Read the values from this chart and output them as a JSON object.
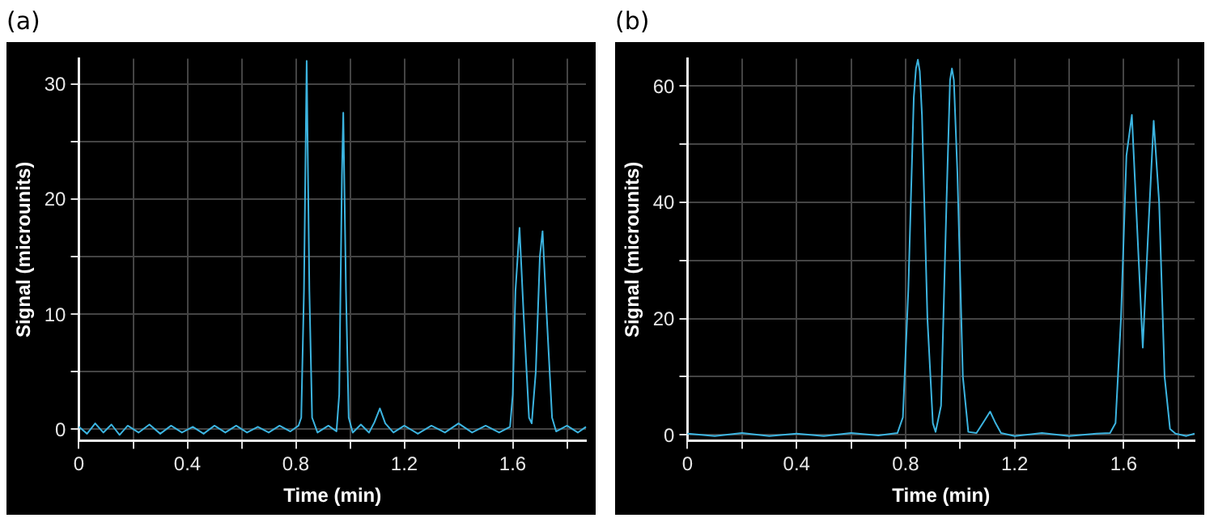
{
  "chart_data": [
    {
      "type": "line",
      "title": "(a)",
      "xlabel": "Time (min)",
      "ylabel": "Signal (microunits)",
      "color": "#3cb4e0",
      "marker": "none",
      "grid": true,
      "xlim": [
        0,
        1.87
      ],
      "ylim": [
        -1,
        32.2
      ],
      "xticks": [
        0,
        {
          "value": 0.2,
          "label": null
        },
        0.4,
        {
          "value": 0.6,
          "label": null
        },
        0.8,
        {
          "value": 1.0,
          "label": null
        },
        1.2,
        {
          "value": 1.4,
          "label": null
        },
        1.6,
        {
          "value": 1.8,
          "label": null
        }
      ],
      "yticks": [
        0,
        {
          "value": 5,
          "label": null
        },
        10,
        {
          "value": 15,
          "label": null
        },
        20,
        {
          "value": 25,
          "label": null
        },
        30
      ],
      "x": [
        0,
        0.03,
        0.06,
        0.09,
        0.12,
        0.15,
        0.18,
        0.22,
        0.26,
        0.3,
        0.34,
        0.38,
        0.42,
        0.46,
        0.5,
        0.54,
        0.58,
        0.62,
        0.66,
        0.7,
        0.74,
        0.78,
        0.81,
        0.82,
        0.83,
        0.84,
        0.85,
        0.86,
        0.88,
        0.92,
        0.95,
        0.96,
        0.97,
        0.975,
        0.985,
        0.995,
        1.01,
        1.04,
        1.07,
        1.09,
        1.11,
        1.13,
        1.16,
        1.2,
        1.25,
        1.3,
        1.35,
        1.4,
        1.45,
        1.5,
        1.55,
        1.59,
        1.6,
        1.61,
        1.625,
        1.64,
        1.66,
        1.67,
        1.685,
        1.7,
        1.71,
        1.725,
        1.745,
        1.76,
        1.8,
        1.84,
        1.87
      ],
      "values": [
        0.2,
        -0.4,
        0.5,
        -0.3,
        0.4,
        -0.5,
        0.3,
        -0.3,
        0.4,
        -0.4,
        0.3,
        -0.3,
        0.2,
        -0.4,
        0.3,
        -0.3,
        0.3,
        -0.3,
        0.2,
        -0.3,
        0.3,
        -0.2,
        0.3,
        1,
        12,
        32,
        12,
        1,
        -0.3,
        0.3,
        -0.2,
        3,
        22,
        27.5,
        12,
        1,
        -0.3,
        0.4,
        -0.3,
        0.6,
        1.8,
        0.5,
        -0.3,
        0.3,
        -0.4,
        0.3,
        -0.3,
        0.5,
        -0.3,
        0.3,
        -0.3,
        0.2,
        3,
        12,
        17.5,
        10,
        1,
        0.5,
        5,
        15,
        17.2,
        10,
        1,
        -0.2,
        0.3,
        -0.3,
        0.2
      ]
    },
    {
      "type": "line",
      "title": "(b)",
      "xlabel": "Time (min)",
      "ylabel": "Signal (microunits)",
      "color": "#3cb4e0",
      "marker": "none",
      "grid": true,
      "xlim": [
        0,
        1.86
      ],
      "ylim": [
        -1,
        64.7
      ],
      "xticks": [
        0,
        {
          "value": 0.2,
          "label": null
        },
        0.4,
        {
          "value": 0.6,
          "label": null
        },
        0.8,
        {
          "value": 1.0,
          "label": null
        },
        1.2,
        {
          "value": 1.4,
          "label": null
        },
        1.6,
        {
          "value": 1.8,
          "label": null
        }
      ],
      "yticks": [
        0,
        {
          "value": 10,
          "label": null
        },
        20,
        {
          "value": 30,
          "label": null
        },
        40,
        {
          "value": 50,
          "label": null
        },
        60
      ],
      "x": [
        0,
        0.1,
        0.2,
        0.3,
        0.4,
        0.5,
        0.6,
        0.7,
        0.77,
        0.79,
        0.81,
        0.83,
        0.838,
        0.845,
        0.852,
        0.86,
        0.88,
        0.9,
        0.91,
        0.93,
        0.95,
        0.963,
        0.97,
        0.977,
        0.99,
        1.01,
        1.03,
        1.06,
        1.09,
        1.11,
        1.13,
        1.15,
        1.2,
        1.3,
        1.4,
        1.5,
        1.55,
        1.57,
        1.59,
        1.61,
        1.63,
        1.65,
        1.67,
        1.69,
        1.71,
        1.73,
        1.75,
        1.77,
        1.79,
        1.83,
        1.86
      ],
      "values": [
        0.2,
        -0.2,
        0.3,
        -0.2,
        0.2,
        -0.2,
        0.3,
        -0.1,
        0.3,
        3,
        25,
        58,
        63,
        64.5,
        62.5,
        55,
        20,
        2,
        0.5,
        5,
        40,
        61,
        63,
        61,
        45,
        10,
        0.5,
        0.3,
        2.5,
        4,
        2,
        0.3,
        -0.2,
        0.3,
        -0.2,
        0.2,
        0.3,
        2,
        20,
        48,
        55,
        35,
        15,
        35,
        54,
        40,
        10,
        1,
        0.2,
        -0.2,
        0.2
      ]
    }
  ]
}
